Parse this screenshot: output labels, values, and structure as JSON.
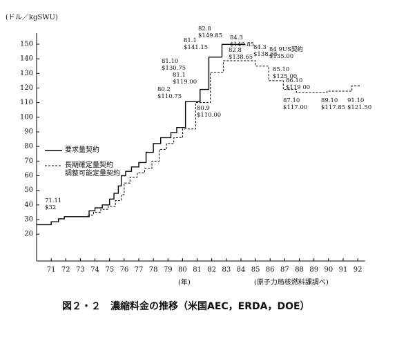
{
  "chart_data": {
    "type": "step",
    "y_unit": "(ドル／kgSWU)",
    "x_unit": "(年)",
    "source": "(原子力局核燃料課調べ)",
    "caption": "図２・２　濃縮料金の推移（米国AEC，ERDA，DOE）",
    "xlim": [
      70,
      92.5
    ],
    "xticks": [
      71,
      72,
      73,
      74,
      75,
      76,
      77,
      78,
      79,
      80,
      81,
      82,
      83,
      84,
      85,
      86,
      87,
      88,
      89,
      90,
      91,
      92
    ],
    "ylim": [
      0,
      155
    ],
    "yticks": [
      20,
      30,
      40,
      50,
      60,
      70,
      80,
      90,
      100,
      110,
      120,
      130,
      140,
      150
    ],
    "series": [
      {
        "name": "要求量契約",
        "color": "#000000",
        "dash": false,
        "x": [
          70,
          71.0,
          71.5,
          71.9,
          73.6,
          74.0,
          74.5,
          75.0,
          75.3,
          75.6,
          75.8,
          76.1,
          76.5,
          77.0,
          77.5,
          78.0,
          78.5,
          79.2,
          79.6,
          80.2,
          81.2,
          81.8,
          82.7,
          84.3
        ],
        "values": [
          26.5,
          28.5,
          30.5,
          32,
          36,
          38,
          40,
          44,
          48,
          53,
          60,
          63,
          66,
          69,
          76,
          82,
          86,
          89.5,
          93,
          110.75,
          119,
          141.15,
          149.85,
          149.85
        ]
      },
      {
        "name": "長期確定量契約\n調整可能定量契約",
        "color": "#000000",
        "dash": true,
        "x": [
          73.5,
          73.9,
          74.4,
          74.9,
          75.4,
          75.8,
          76.0,
          76.4,
          76.9,
          77.4,
          77.9,
          78.4,
          78.9,
          79.4,
          80.0,
          80.9,
          81.9,
          82.8,
          85.0,
          85.9,
          86.9,
          87.8,
          89.9,
          91.6,
          92.2
        ],
        "values": [
          33,
          35,
          37,
          39,
          43,
          47,
          55,
          59,
          62,
          65,
          70,
          78,
          82,
          86,
          92,
          110,
          130.75,
          138.65,
          135,
          125,
          119,
          117,
          117.85,
          121.5,
          121.5
        ]
      }
    ],
    "annotations": [
      "71.11\n$32",
      "80.2\n$110.75",
      "81.1\n$119.00",
      "81.10\n$130.75",
      "81.1\n$141.15",
      "82.8\n$149.85",
      "84.3\n$149.85",
      "80.9\n$110.00",
      "82.8\n$138.65",
      "84.3\n$138.65",
      "84 9US契約\n$135.00",
      "85.10\n$125 00",
      "86.10\n$119 00",
      "87.10\n$117.00",
      "89.10\n$117.85",
      "91.10\n$121.50"
    ]
  }
}
